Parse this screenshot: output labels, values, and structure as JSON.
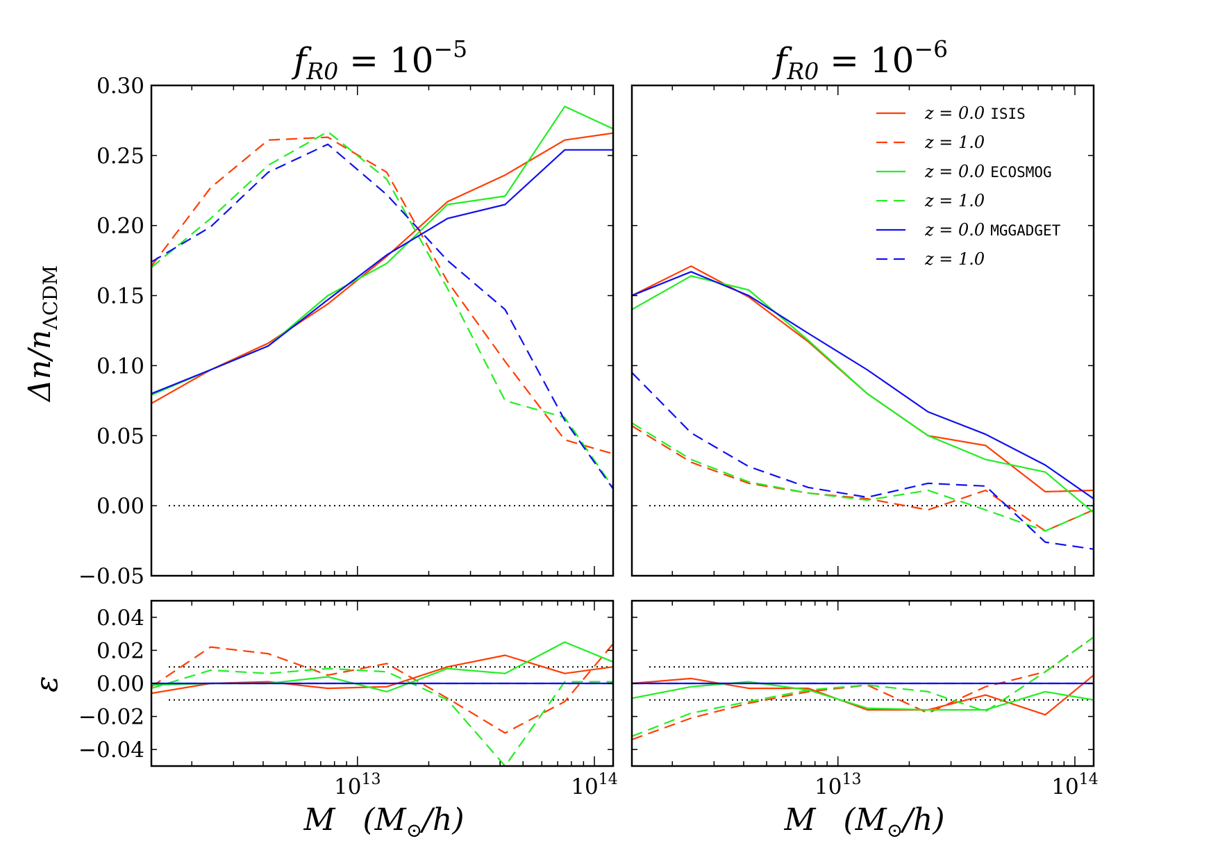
{
  "chart_data": [
    {
      "type": "line",
      "panel": "top-left",
      "title": "f_R0 = 10^-5",
      "xscale": "log",
      "xlim": [
        1350000000000.0,
        120000000000000.0
      ],
      "ylim": [
        -0.05,
        0.3
      ],
      "yticks": [
        "0.30",
        "0.25",
        "0.20",
        "0.15",
        "0.10",
        "0.05",
        "0.00",
        "−0.05"
      ],
      "ylabel": "Δn/n_ΛCDM",
      "reference_lines": [
        0.0
      ],
      "series": [
        {
          "name": "z = 0.0 ISIS",
          "color": "#ff3d00",
          "dash": "solid",
          "x": [
            1350000000000.0,
            2400000000000.0,
            4200000000000.0,
            7500000000000.0,
            13300000000000.0,
            24000000000000.0,
            42000000000000.0,
            75000000000000.0,
            120000000000000.0
          ],
          "y": [
            0.073,
            0.097,
            0.116,
            0.144,
            0.178,
            0.217,
            0.236,
            0.261,
            0.266
          ]
        },
        {
          "name": "z = 1.0",
          "color": "#ff3d00",
          "dash": "dashed",
          "x": [
            1350000000000.0,
            2400000000000.0,
            4200000000000.0,
            7500000000000.0,
            13300000000000.0,
            24000000000000.0,
            42000000000000.0,
            75000000000000.0,
            120000000000000.0
          ],
          "y": [
            0.171,
            0.227,
            0.261,
            0.263,
            0.238,
            0.16,
            0.103,
            0.047,
            0.037
          ]
        },
        {
          "name": "z = 0.0 ECOSMOG",
          "color": "#22ee22",
          "dash": "solid",
          "x": [
            1350000000000.0,
            2400000000000.0,
            4200000000000.0,
            7500000000000.0,
            13300000000000.0,
            24000000000000.0,
            42000000000000.0,
            75000000000000.0,
            120000000000000.0
          ],
          "y": [
            0.079,
            0.097,
            0.114,
            0.15,
            0.173,
            0.215,
            0.221,
            0.285,
            0.269
          ]
        },
        {
          "name": "z = 1.0",
          "color": "#22ee22",
          "dash": "dashed",
          "x": [
            1350000000000.0,
            2400000000000.0,
            4200000000000.0,
            7500000000000.0,
            13300000000000.0,
            24000000000000.0,
            42000000000000.0,
            75000000000000.0,
            120000000000000.0
          ],
          "y": [
            0.17,
            0.205,
            0.243,
            0.267,
            0.233,
            0.155,
            0.075,
            0.063,
            0.013
          ]
        },
        {
          "name": "z = 0.0 MGGADGET",
          "color": "#1010ee",
          "dash": "solid",
          "x": [
            1350000000000.0,
            2400000000000.0,
            4200000000000.0,
            7500000000000.0,
            13300000000000.0,
            24000000000000.0,
            42000000000000.0,
            75000000000000.0,
            120000000000000.0
          ],
          "y": [
            0.08,
            0.097,
            0.114,
            0.147,
            0.179,
            0.205,
            0.215,
            0.254,
            0.254
          ]
        },
        {
          "name": "z = 1.0",
          "color": "#1010ee",
          "dash": "dashed",
          "x": [
            1350000000000.0,
            2400000000000.0,
            4200000000000.0,
            7500000000000.0,
            13300000000000.0,
            24000000000000.0,
            42000000000000.0,
            75000000000000.0,
            120000000000000.0
          ],
          "y": [
            0.174,
            0.199,
            0.238,
            0.258,
            0.222,
            0.175,
            0.14,
            0.061,
            0.012
          ]
        }
      ]
    },
    {
      "type": "line",
      "panel": "top-right",
      "title": "f_R0 = 10^-6",
      "xscale": "log",
      "xlim": [
        1350000000000.0,
        120000000000000.0
      ],
      "ylim": [
        -0.05,
        0.3
      ],
      "reference_lines": [
        0.0
      ],
      "legend_position": "top-right",
      "series": [
        {
          "name": "z = 0.0 ISIS",
          "color": "#ff3d00",
          "dash": "solid",
          "x": [
            1350000000000.0,
            2400000000000.0,
            4200000000000.0,
            7500000000000.0,
            13300000000000.0,
            24000000000000.0,
            42000000000000.0,
            75000000000000.0,
            120000000000000.0
          ],
          "y": [
            0.15,
            0.171,
            0.149,
            0.117,
            0.08,
            0.05,
            0.043,
            0.01,
            0.011
          ]
        },
        {
          "name": "z = 1.0",
          "color": "#ff3d00",
          "dash": "dashed",
          "x": [
            1350000000000.0,
            2400000000000.0,
            4200000000000.0,
            7500000000000.0,
            13300000000000.0,
            24000000000000.0,
            42000000000000.0,
            75000000000000.0,
            120000000000000.0
          ],
          "y": [
            0.057,
            0.031,
            0.016,
            0.009,
            0.005,
            -0.003,
            0.011,
            -0.018,
            -0.003
          ]
        },
        {
          "name": "z = 0.0 ECOSMOG",
          "color": "#22ee22",
          "dash": "solid",
          "x": [
            1350000000000.0,
            2400000000000.0,
            4200000000000.0,
            7500000000000.0,
            13300000000000.0,
            24000000000000.0,
            42000000000000.0,
            75000000000000.0,
            120000000000000.0
          ],
          "y": [
            0.14,
            0.164,
            0.154,
            0.118,
            0.08,
            0.05,
            0.033,
            0.024,
            -0.005
          ]
        },
        {
          "name": "z = 1.0",
          "color": "#22ee22",
          "dash": "dashed",
          "x": [
            1350000000000.0,
            2400000000000.0,
            4200000000000.0,
            7500000000000.0,
            13300000000000.0,
            24000000000000.0,
            42000000000000.0,
            75000000000000.0,
            120000000000000.0
          ],
          "y": [
            0.059,
            0.033,
            0.017,
            0.009,
            0.004,
            0.011,
            -0.003,
            -0.018,
            -0.003
          ]
        },
        {
          "name": "z = 0.0 MGGADGET",
          "color": "#1010ee",
          "dash": "solid",
          "x": [
            1350000000000.0,
            2400000000000.0,
            4200000000000.0,
            7500000000000.0,
            13300000000000.0,
            24000000000000.0,
            42000000000000.0,
            75000000000000.0,
            120000000000000.0
          ],
          "y": [
            0.15,
            0.167,
            0.15,
            0.123,
            0.097,
            0.067,
            0.051,
            0.029,
            0.005
          ]
        },
        {
          "name": "z = 1.0",
          "color": "#1010ee",
          "dash": "dashed",
          "x": [
            1350000000000.0,
            2400000000000.0,
            4200000000000.0,
            7500000000000.0,
            13300000000000.0,
            24000000000000.0,
            42000000000000.0,
            75000000000000.0,
            120000000000000.0
          ],
          "y": [
            0.095,
            0.052,
            0.028,
            0.013,
            0.006,
            0.016,
            0.014,
            -0.026,
            -0.031
          ]
        }
      ]
    },
    {
      "type": "line",
      "panel": "bottom-left",
      "xscale": "log",
      "xlim": [
        1350000000000.0,
        120000000000000.0
      ],
      "ylim": [
        -0.05,
        0.05
      ],
      "yticks": [
        "0.04",
        "0.02",
        "0.00",
        "−0.02",
        "−0.04"
      ],
      "ylabel": "ε",
      "xticks": [
        "10^13",
        "10^14"
      ],
      "xlabel": "M (M_⊙/h)",
      "reference_lines": [
        0.0,
        0.01,
        -0.01
      ],
      "series": [
        {
          "name": "z = 0.0 ISIS",
          "color": "#ff3d00",
          "dash": "solid",
          "x": [
            1350000000000.0,
            2400000000000.0,
            4200000000000.0,
            7500000000000.0,
            13300000000000.0,
            24000000000000.0,
            42000000000000.0,
            75000000000000.0,
            120000000000000.0
          ],
          "y": [
            -0.006,
            0.0,
            0.001,
            -0.003,
            -0.002,
            0.01,
            0.017,
            0.006,
            0.01
          ]
        },
        {
          "name": "z = 1.0",
          "color": "#ff3d00",
          "dash": "dashed",
          "x": [
            1350000000000.0,
            2400000000000.0,
            4200000000000.0,
            7500000000000.0,
            13300000000000.0,
            24000000000000.0,
            42000000000000.0,
            75000000000000.0,
            120000000000000.0
          ],
          "y": [
            -0.002,
            0.022,
            0.018,
            0.005,
            0.012,
            -0.009,
            -0.03,
            -0.011,
            0.024
          ]
        },
        {
          "name": "z = 0.0 ECOSMOG",
          "color": "#22ee22",
          "dash": "solid",
          "x": [
            1350000000000.0,
            2400000000000.0,
            4200000000000.0,
            7500000000000.0,
            13300000000000.0,
            24000000000000.0,
            42000000000000.0,
            75000000000000.0,
            120000000000000.0
          ],
          "y": [
            -0.001,
            0.0,
            0.0,
            0.004,
            -0.005,
            0.009,
            0.006,
            0.025,
            0.013
          ]
        },
        {
          "name": "z = 1.0",
          "color": "#22ee22",
          "dash": "dashed",
          "x": [
            1350000000000.0,
            2400000000000.0,
            4200000000000.0,
            7500000000000.0,
            13300000000000.0,
            24000000000000.0,
            42000000000000.0,
            75000000000000.0,
            120000000000000.0
          ],
          "y": [
            -0.003,
            0.008,
            0.006,
            0.009,
            0.007,
            -0.01,
            -0.05,
            0.001,
            0.001
          ]
        },
        {
          "name": "z = 0.0 MGGADGET",
          "color": "#1010ee",
          "dash": "solid",
          "x": [
            1350000000000.0,
            120000000000000.0
          ],
          "y": [
            0.0,
            0.0
          ]
        },
        {
          "name": "z = 1.0",
          "color": "#1010ee",
          "dash": "dashed",
          "x": [
            1350000000000.0,
            120000000000000.0
          ],
          "y": [
            0.0,
            0.0
          ]
        }
      ]
    },
    {
      "type": "line",
      "panel": "bottom-right",
      "xscale": "log",
      "xlim": [
        1350000000000.0,
        120000000000000.0
      ],
      "ylim": [
        -0.05,
        0.05
      ],
      "xticks": [
        "10^13",
        "10^14"
      ],
      "xlabel": "M (M_⊙/h)",
      "reference_lines": [
        0.0,
        0.01,
        -0.01
      ],
      "series": [
        {
          "name": "z = 0.0 ISIS",
          "color": "#ff3d00",
          "dash": "solid",
          "x": [
            1350000000000.0,
            2400000000000.0,
            4200000000000.0,
            7500000000000.0,
            13300000000000.0,
            24000000000000.0,
            42000000000000.0,
            75000000000000.0,
            120000000000000.0
          ],
          "y": [
            0.0,
            0.003,
            -0.003,
            -0.003,
            -0.016,
            -0.016,
            -0.007,
            -0.019,
            0.005
          ]
        },
        {
          "name": "z = 1.0",
          "color": "#ff3d00",
          "dash": "dashed",
          "x": [
            1350000000000.0,
            2400000000000.0,
            4200000000000.0,
            7500000000000.0,
            13300000000000.0,
            24000000000000.0,
            42000000000000.0,
            75000000000000.0,
            120000000000000.0
          ],
          "y": [
            -0.034,
            -0.021,
            -0.012,
            -0.005,
            -0.001,
            -0.018,
            -0.002,
            0.007,
            0.028
          ]
        },
        {
          "name": "z = 0.0 ECOSMOG",
          "color": "#22ee22",
          "dash": "solid",
          "x": [
            1350000000000.0,
            2400000000000.0,
            4200000000000.0,
            7500000000000.0,
            13300000000000.0,
            24000000000000.0,
            42000000000000.0,
            75000000000000.0,
            120000000000000.0
          ],
          "y": [
            -0.009,
            -0.002,
            0.001,
            -0.004,
            -0.015,
            -0.016,
            -0.016,
            -0.005,
            -0.01
          ]
        },
        {
          "name": "z = 1.0",
          "color": "#22ee22",
          "dash": "dashed",
          "x": [
            1350000000000.0,
            2400000000000.0,
            4200000000000.0,
            7500000000000.0,
            13300000000000.0,
            24000000000000.0,
            42000000000000.0,
            75000000000000.0,
            120000000000000.0
          ],
          "y": [
            -0.032,
            -0.018,
            -0.011,
            -0.004,
            -0.001,
            -0.005,
            -0.017,
            0.007,
            0.028
          ]
        },
        {
          "name": "z = 0.0 MGGADGET",
          "color": "#1010ee",
          "dash": "solid",
          "x": [
            1350000000000.0,
            120000000000000.0
          ],
          "y": [
            0.0,
            0.0
          ]
        },
        {
          "name": "z = 1.0",
          "color": "#1010ee",
          "dash": "dashed",
          "x": [
            1350000000000.0,
            120000000000000.0
          ],
          "y": [
            0.0,
            0.0
          ]
        }
      ]
    }
  ],
  "labels": {
    "title_left": {
      "base": "f",
      "sub": "R0",
      "eq": " = 10",
      "sup": "−5"
    },
    "title_right": {
      "base": "f",
      "sub": "R0",
      "eq": " = 10",
      "sup": "−6"
    },
    "ylabel_top": {
      "a": "Δn/n",
      "sub": "ΛCDM"
    },
    "ylabel_bottom": "ε",
    "xlabel": {
      "m": "M",
      "units": "(M",
      "sub": "⊙",
      "tail": "/h)"
    }
  },
  "legend": [
    {
      "z": "z = 0.0",
      "code": "ISIS",
      "color": "#ff3d00",
      "dash": "solid"
    },
    {
      "z": "z = 1.0",
      "code": "",
      "color": "#ff3d00",
      "dash": "dashed"
    },
    {
      "z": "z = 0.0",
      "code": "ECOSMOG",
      "color": "#22ee22",
      "dash": "solid"
    },
    {
      "z": "z = 1.0",
      "code": "",
      "color": "#22ee22",
      "dash": "dashed"
    },
    {
      "z": "z = 0.0",
      "code": "MGGADGET",
      "color": "#1010ee",
      "dash": "solid"
    },
    {
      "z": "z = 1.0",
      "code": "",
      "color": "#1010ee",
      "dash": "dashed"
    }
  ]
}
